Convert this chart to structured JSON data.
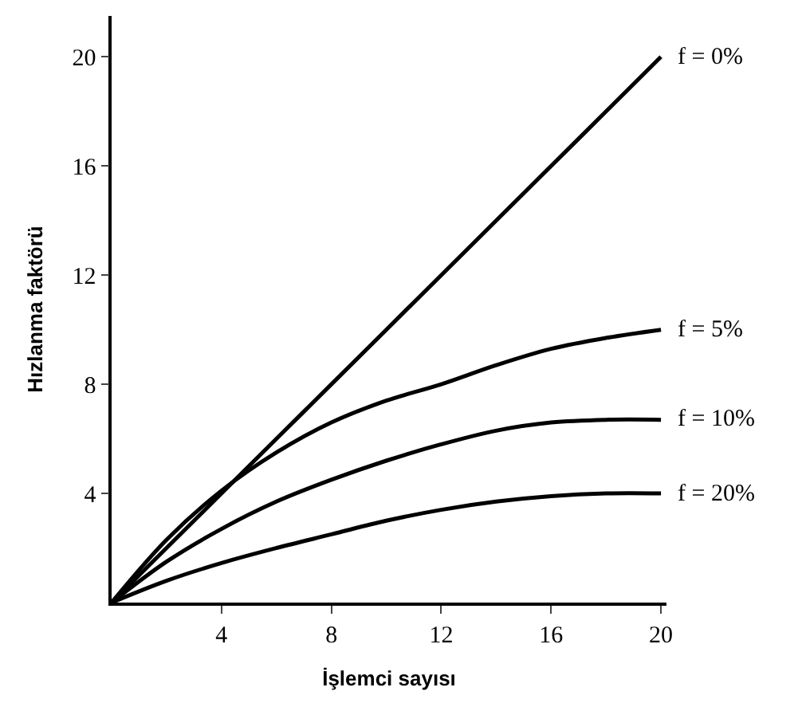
{
  "chart_data": {
    "type": "line",
    "xlabel": "İşlemci sayısı",
    "ylabel": "Hızlanma faktörü",
    "xlim": [
      0,
      20.2
    ],
    "ylim": [
      0,
      21.5
    ],
    "xticks": [
      4,
      8,
      12,
      16,
      20
    ],
    "yticks": [
      4,
      8,
      12,
      16,
      20
    ],
    "legend": false,
    "marker": "none",
    "line_style": "solid",
    "x": [
      0,
      2,
      4,
      6,
      8,
      10,
      12,
      14,
      16,
      18,
      20
    ],
    "series": [
      {
        "name": "f = 0%",
        "color": "#000000",
        "values": [
          0,
          2,
          4,
          6,
          8,
          10,
          12,
          14,
          16,
          18,
          20
        ]
      },
      {
        "name": "f = 5%",
        "color": "#000000",
        "values": [
          0,
          2.3,
          4.1,
          5.5,
          6.6,
          7.4,
          8.0,
          8.7,
          9.3,
          9.7,
          10.0
        ]
      },
      {
        "name": "f = 10%",
        "color": "#000000",
        "values": [
          0,
          1.5,
          2.7,
          3.7,
          4.5,
          5.2,
          5.8,
          6.3,
          6.6,
          6.7,
          6.7
        ]
      },
      {
        "name": "f = 20%",
        "color": "#000000",
        "values": [
          0,
          0.8,
          1.45,
          2.0,
          2.5,
          3.0,
          3.4,
          3.7,
          3.9,
          4.0,
          4.0
        ]
      }
    ]
  }
}
